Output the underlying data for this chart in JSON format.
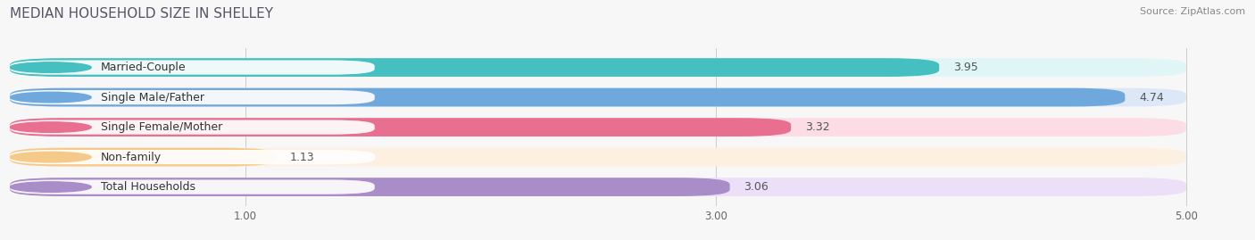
{
  "title": "MEDIAN HOUSEHOLD SIZE IN SHELLEY",
  "source": "Source: ZipAtlas.com",
  "categories": [
    "Married-Couple",
    "Single Male/Father",
    "Single Female/Mother",
    "Non-family",
    "Total Households"
  ],
  "values": [
    3.95,
    4.74,
    3.32,
    1.13,
    3.06
  ],
  "bar_colors": [
    "#45bfbf",
    "#6fa8dc",
    "#e86f8f",
    "#f5c98a",
    "#a98dc8"
  ],
  "bar_bg_colors": [
    "#e0f5f5",
    "#dce8f8",
    "#fcdde6",
    "#fdf0e0",
    "#ece0f8"
  ],
  "dot_colors": [
    "#45bfbf",
    "#6fa8dc",
    "#e86f8f",
    "#f5c98a",
    "#a98dc8"
  ],
  "xlim_data": [
    0.0,
    5.25
  ],
  "xdata_min": 0.0,
  "xdata_max": 5.0,
  "xticks": [
    1.0,
    3.0,
    5.0
  ],
  "background_color": "#f7f7f7",
  "title_fontsize": 11,
  "source_fontsize": 8,
  "bar_label_fontsize": 9,
  "category_fontsize": 9,
  "bar_height": 0.62,
  "bar_gap": 0.38
}
